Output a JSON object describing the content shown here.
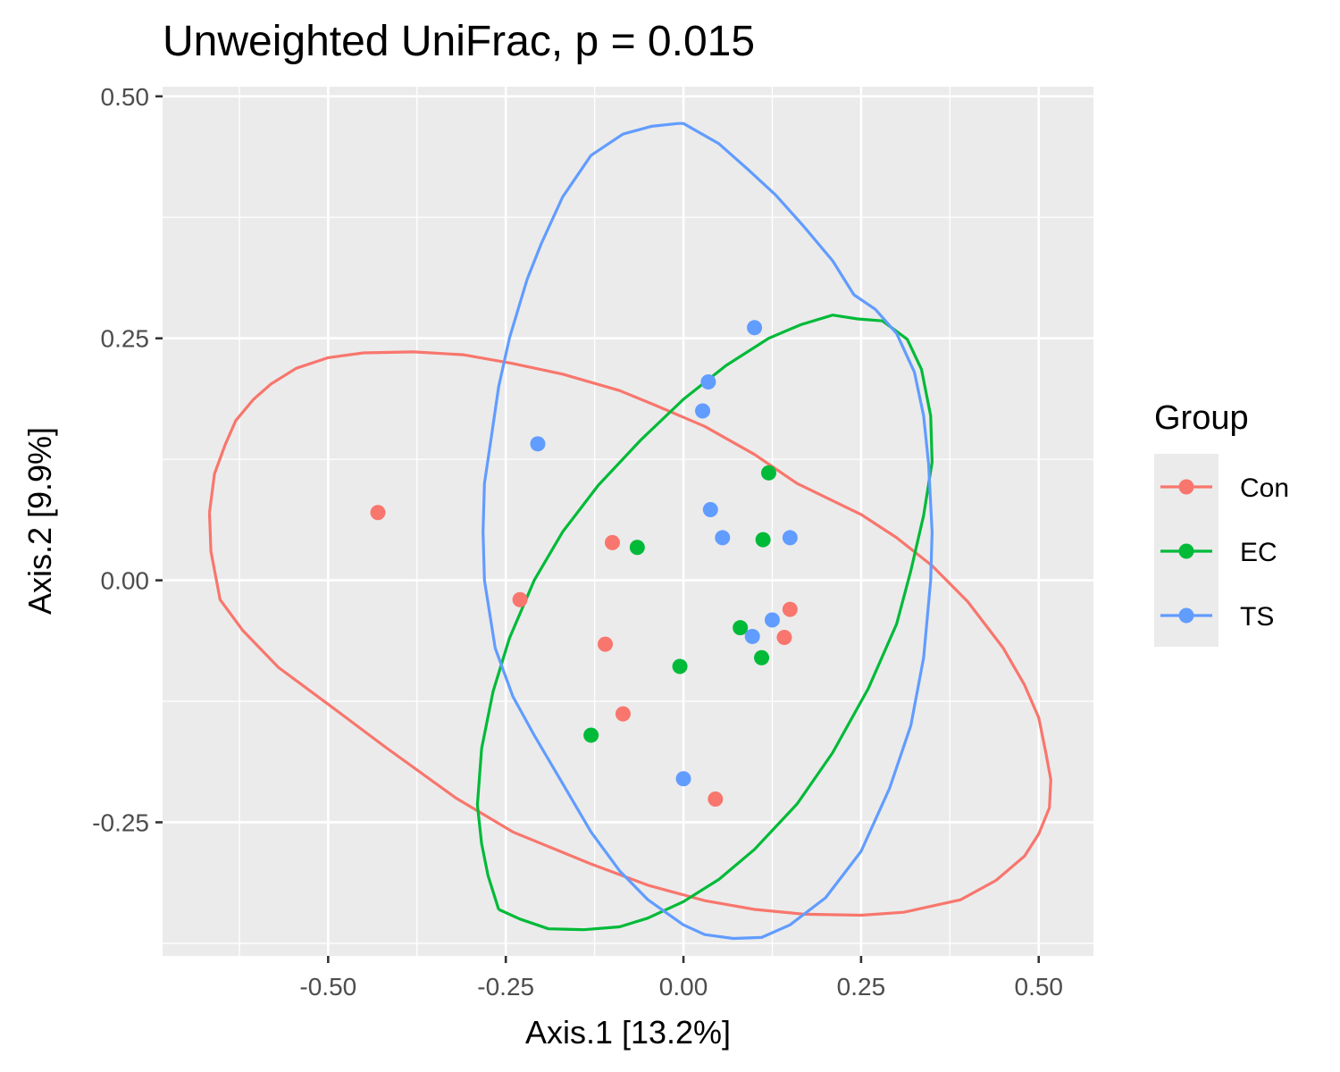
{
  "chart_data": {
    "type": "scatter",
    "title": "Unweighted UniFrac, p = 0.015",
    "xlabel": "Axis.1   [13.2%]",
    "ylabel": "Axis.2   [9.9%]",
    "xlim": [
      -0.733,
      0.577
    ],
    "ylim": [
      -0.388,
      0.51
    ],
    "x_ticks": [
      -0.5,
      -0.25,
      0.0,
      0.25,
      0.5
    ],
    "x_tick_labels": [
      "-0.50",
      "-0.25",
      "0.00",
      "0.25",
      "0.50"
    ],
    "y_ticks": [
      -0.25,
      0.0,
      0.25,
      0.5
    ],
    "y_tick_labels": [
      "-0.25",
      "0.00",
      "0.25",
      "0.50"
    ],
    "grid": true,
    "background": "#ebebeb",
    "legend": {
      "title": "Group",
      "placement": "right"
    },
    "series": [
      {
        "name": "Con",
        "color": "#F8766D",
        "points": [
          {
            "x": -0.43,
            "y": 0.07
          },
          {
            "x": -0.23,
            "y": -0.02
          },
          {
            "x": -0.1,
            "y": 0.039
          },
          {
            "x": -0.11,
            "y": -0.066
          },
          {
            "x": -0.085,
            "y": -0.138
          },
          {
            "x": 0.045,
            "y": -0.226
          },
          {
            "x": 0.15,
            "y": -0.03
          },
          {
            "x": 0.142,
            "y": -0.059
          }
        ],
        "ellipse": [
          [
            -0.667,
            0.07
          ],
          [
            -0.66,
            0.11
          ],
          [
            -0.645,
            0.14
          ],
          [
            -0.63,
            0.165
          ],
          [
            -0.605,
            0.187
          ],
          [
            -0.58,
            0.203
          ],
          [
            -0.545,
            0.219
          ],
          [
            -0.5,
            0.23
          ],
          [
            -0.45,
            0.235
          ],
          [
            -0.38,
            0.236
          ],
          [
            -0.31,
            0.233
          ],
          [
            -0.24,
            0.224
          ],
          [
            -0.17,
            0.213
          ],
          [
            -0.09,
            0.196
          ],
          [
            -0.04,
            0.181
          ],
          [
            0.03,
            0.159
          ],
          [
            0.1,
            0.13
          ],
          [
            0.16,
            0.1
          ],
          [
            0.25,
            0.068
          ],
          [
            0.3,
            0.044
          ],
          [
            0.35,
            0.015
          ],
          [
            0.4,
            -0.022
          ],
          [
            0.45,
            -0.07
          ],
          [
            0.48,
            -0.108
          ],
          [
            0.5,
            -0.142
          ],
          [
            0.51,
            -0.178
          ],
          [
            0.517,
            -0.206
          ],
          [
            0.515,
            -0.235
          ],
          [
            0.5,
            -0.262
          ],
          [
            0.48,
            -0.285
          ],
          [
            0.44,
            -0.31
          ],
          [
            0.39,
            -0.33
          ],
          [
            0.31,
            -0.343
          ],
          [
            0.25,
            -0.346
          ],
          [
            0.17,
            -0.345
          ],
          [
            0.1,
            -0.34
          ],
          [
            0.03,
            -0.331
          ],
          [
            -0.05,
            -0.315
          ],
          [
            -0.13,
            -0.293
          ],
          [
            -0.24,
            -0.26
          ],
          [
            -0.32,
            -0.225
          ],
          [
            -0.42,
            -0.172
          ],
          [
            -0.5,
            -0.128
          ],
          [
            -0.57,
            -0.09
          ],
          [
            -0.62,
            -0.052
          ],
          [
            -0.652,
            -0.02
          ],
          [
            -0.665,
            0.03
          ],
          [
            -0.667,
            0.07
          ]
        ]
      },
      {
        "name": "EC",
        "color": "#00BA38",
        "points": [
          {
            "x": -0.065,
            "y": 0.034
          },
          {
            "x": 0.12,
            "y": 0.111
          },
          {
            "x": 0.112,
            "y": 0.042
          },
          {
            "x": 0.08,
            "y": -0.049
          },
          {
            "x": -0.005,
            "y": -0.089
          },
          {
            "x": 0.11,
            "y": -0.08
          },
          {
            "x": -0.13,
            "y": -0.16
          }
        ],
        "ellipse": [
          [
            -0.26,
            -0.34
          ],
          [
            -0.23,
            -0.35
          ],
          [
            -0.19,
            -0.36
          ],
          [
            -0.14,
            -0.361
          ],
          [
            -0.09,
            -0.358
          ],
          [
            -0.05,
            -0.349
          ],
          [
            0.0,
            -0.332
          ],
          [
            0.05,
            -0.309
          ],
          [
            0.1,
            -0.278
          ],
          [
            0.16,
            -0.231
          ],
          [
            0.21,
            -0.178
          ],
          [
            0.26,
            -0.112
          ],
          [
            0.3,
            -0.045
          ],
          [
            0.32,
            0.01
          ],
          [
            0.338,
            0.067
          ],
          [
            0.35,
            0.122
          ],
          [
            0.348,
            0.17
          ],
          [
            0.335,
            0.218
          ],
          [
            0.315,
            0.249
          ],
          [
            0.28,
            0.268
          ],
          [
            0.245,
            0.27
          ],
          [
            0.21,
            0.274
          ],
          [
            0.165,
            0.264
          ],
          [
            0.12,
            0.25
          ],
          [
            0.06,
            0.222
          ],
          [
            0.0,
            0.187
          ],
          [
            -0.06,
            0.145
          ],
          [
            -0.12,
            0.098
          ],
          [
            -0.17,
            0.05
          ],
          [
            -0.21,
            0.0
          ],
          [
            -0.245,
            -0.06
          ],
          [
            -0.268,
            -0.115
          ],
          [
            -0.284,
            -0.174
          ],
          [
            -0.29,
            -0.232
          ],
          [
            -0.284,
            -0.272
          ],
          [
            -0.275,
            -0.305
          ],
          [
            -0.26,
            -0.34
          ]
        ]
      },
      {
        "name": "TS",
        "color": "#619CFF",
        "points": [
          {
            "x": 0.1,
            "y": 0.261
          },
          {
            "x": 0.035,
            "y": 0.205
          },
          {
            "x": 0.027,
            "y": 0.175
          },
          {
            "x": -0.205,
            "y": 0.141
          },
          {
            "x": 0.038,
            "y": 0.073
          },
          {
            "x": 0.055,
            "y": 0.044
          },
          {
            "x": 0.15,
            "y": 0.044
          },
          {
            "x": 0.125,
            "y": -0.041
          },
          {
            "x": 0.097,
            "y": -0.058
          },
          {
            "x": 0.0,
            "y": -0.205
          }
        ],
        "ellipse": [
          [
            -0.007,
            0.472
          ],
          [
            -0.045,
            0.469
          ],
          [
            -0.085,
            0.461
          ],
          [
            -0.13,
            0.439
          ],
          [
            -0.17,
            0.396
          ],
          [
            -0.2,
            0.348
          ],
          [
            -0.22,
            0.311
          ],
          [
            -0.245,
            0.25
          ],
          [
            -0.26,
            0.2
          ],
          [
            -0.27,
            0.15
          ],
          [
            -0.28,
            0.1
          ],
          [
            -0.282,
            0.05
          ],
          [
            -0.28,
            0.0
          ],
          [
            -0.265,
            -0.07
          ],
          [
            -0.24,
            -0.12
          ],
          [
            -0.21,
            -0.16
          ],
          [
            -0.17,
            -0.21
          ],
          [
            -0.13,
            -0.26
          ],
          [
            -0.09,
            -0.3
          ],
          [
            -0.05,
            -0.33
          ],
          [
            0.0,
            -0.356
          ],
          [
            0.03,
            -0.366
          ],
          [
            0.07,
            -0.37
          ],
          [
            0.11,
            -0.369
          ],
          [
            0.15,
            -0.356
          ],
          [
            0.2,
            -0.328
          ],
          [
            0.25,
            -0.28
          ],
          [
            0.29,
            -0.215
          ],
          [
            0.32,
            -0.15
          ],
          [
            0.338,
            -0.08
          ],
          [
            0.348,
            0.0
          ],
          [
            0.35,
            0.05
          ],
          [
            0.345,
            0.12
          ],
          [
            0.338,
            0.17
          ],
          [
            0.325,
            0.215
          ],
          [
            0.3,
            0.255
          ],
          [
            0.27,
            0.28
          ],
          [
            0.24,
            0.295
          ],
          [
            0.21,
            0.33
          ],
          [
            0.17,
            0.365
          ],
          [
            0.13,
            0.398
          ],
          [
            0.09,
            0.425
          ],
          [
            0.05,
            0.451
          ],
          [
            0.0,
            0.472
          ],
          [
            -0.007,
            0.472
          ]
        ]
      }
    ]
  }
}
